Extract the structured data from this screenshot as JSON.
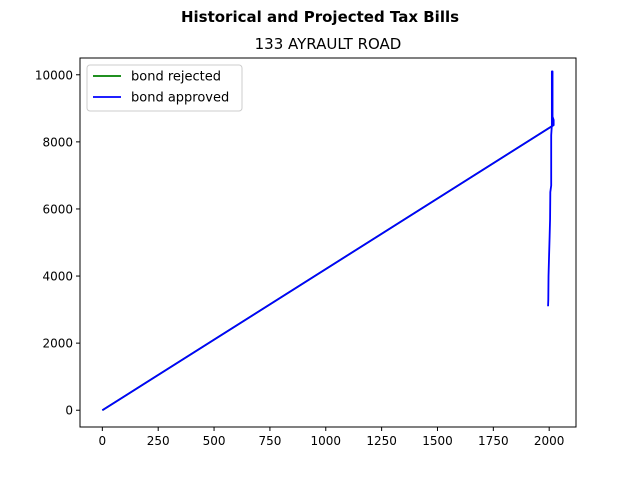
{
  "chart_data": {
    "type": "line",
    "suptitle": "Historical and Projected Tax Bills",
    "title": "133 AYRAULT ROAD",
    "xlabel": "",
    "ylabel": "",
    "xlim": [
      -100,
      2120
    ],
    "ylim": [
      -500,
      10500
    ],
    "xticks": [
      0,
      250,
      500,
      750,
      1000,
      1250,
      1500,
      1750,
      2000
    ],
    "yticks": [
      0,
      2000,
      4000,
      6000,
      8000,
      10000
    ],
    "legend_position": "upper-left",
    "grid": false,
    "series": [
      {
        "name": "bond rejected",
        "color": "#008000",
        "x": [
          0,
          2020
        ],
        "y": [
          0,
          8500
        ]
      },
      {
        "name": "bond approved",
        "color": "#0000ff",
        "x": [
          0,
          2020,
          2020,
          2015,
          2015,
          2012,
          2012,
          2009,
          2009,
          2005,
          2004,
          2002,
          1999,
          1997,
          1996,
          1995
        ],
        "y": [
          0,
          8500,
          8650,
          8750,
          10100,
          10100,
          8500,
          8200,
          6700,
          6500,
          5700,
          5200,
          4500,
          4000,
          3300,
          3100
        ]
      }
    ]
  }
}
